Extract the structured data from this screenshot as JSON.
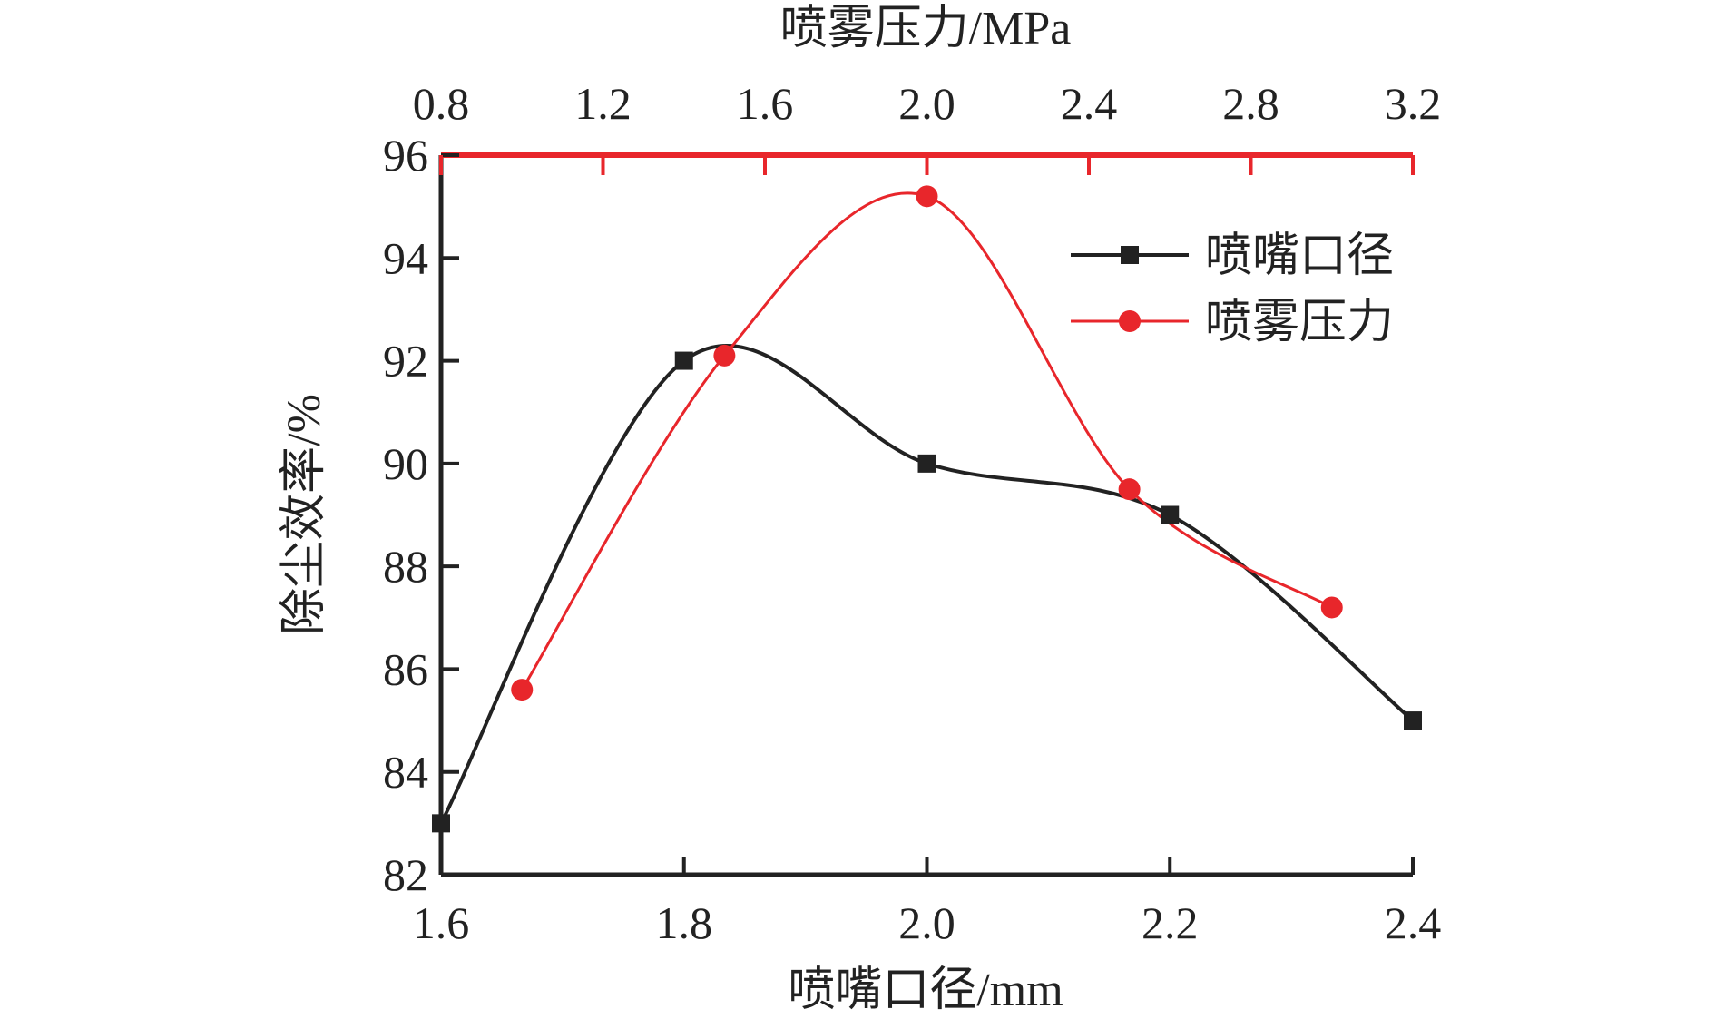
{
  "chart_data": {
    "type": "line",
    "ylabel": "除尘效率/%",
    "ylim": [
      82,
      96
    ],
    "yticks": [
      "82",
      "84",
      "86",
      "88",
      "90",
      "92",
      "94",
      "96"
    ],
    "x_bottom": {
      "label": "喷嘴口径/mm",
      "lim": [
        1.6,
        2.4
      ],
      "ticks": [
        "1.6",
        "1.8",
        "2.0",
        "2.2",
        "2.4"
      ]
    },
    "x_top": {
      "label": "喷雾压力/MPa",
      "lim": [
        0.8,
        3.2
      ],
      "ticks": [
        "0.8",
        "1.2",
        "1.6",
        "2.0",
        "2.4",
        "2.8",
        "3.2"
      ]
    },
    "legend_position": "top-right",
    "series": [
      {
        "name": "喷嘴口径",
        "axis": "bottom",
        "color": "#222222",
        "marker": "square",
        "x": [
          1.6,
          1.8,
          2.0,
          2.2,
          2.4
        ],
        "y": [
          83,
          92,
          90,
          89,
          85
        ]
      },
      {
        "name": "喷雾压力",
        "axis": "top",
        "color": "#e8262b",
        "marker": "circle",
        "x": [
          1.0,
          1.5,
          2.0,
          2.5,
          3.0
        ],
        "y": [
          85.6,
          92.1,
          95.2,
          89.5,
          87.2
        ]
      }
    ]
  }
}
